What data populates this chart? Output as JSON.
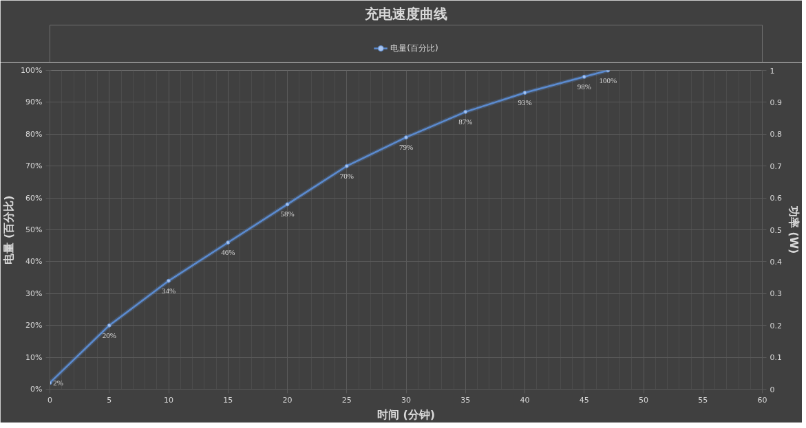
{
  "chart_data": {
    "type": "line",
    "title": "充电速度曲线",
    "xlabel": "时间 (分钟)",
    "ylabel": "电量 (百分比)",
    "y2label": "功率 (W)",
    "x": [
      0,
      5,
      10,
      15,
      20,
      25,
      30,
      35,
      40,
      45,
      47
    ],
    "series": [
      {
        "name": "电量(百分比)",
        "color": "#5b8bd0",
        "values": [
          2,
          20,
          34,
          46,
          58,
          70,
          79,
          87,
          93,
          98,
          100
        ],
        "value_labels": [
          "2%",
          "20%",
          "34%",
          "46%",
          "58%",
          "70%",
          "79%",
          "87%",
          "93%",
          "98%",
          "100%"
        ]
      }
    ],
    "xlim": [
      0,
      60
    ],
    "xticks": [
      0,
      5,
      10,
      15,
      20,
      25,
      30,
      35,
      40,
      45,
      50,
      55,
      60
    ],
    "ylim": [
      0,
      100
    ],
    "yticks": [
      {
        "value": 0,
        "label": "0%"
      },
      {
        "value": 10,
        "label": "10%"
      },
      {
        "value": 20,
        "label": "20%"
      },
      {
        "value": 30,
        "label": "30%"
      },
      {
        "value": 40,
        "label": "40%"
      },
      {
        "value": 50,
        "label": "50%"
      },
      {
        "value": 60,
        "label": "60%"
      },
      {
        "value": 70,
        "label": "70%"
      },
      {
        "value": 80,
        "label": "80%"
      },
      {
        "value": 90,
        "label": "90%"
      },
      {
        "value": 100,
        "label": "100%"
      }
    ],
    "y2lim": [
      0,
      1
    ],
    "y2ticks": [
      0,
      0.1,
      0.2,
      0.3,
      0.4,
      0.5,
      0.6,
      0.7,
      0.8,
      0.9,
      1
    ],
    "grid": true,
    "legend": "top",
    "marker": "circle",
    "line_style": "solid"
  }
}
